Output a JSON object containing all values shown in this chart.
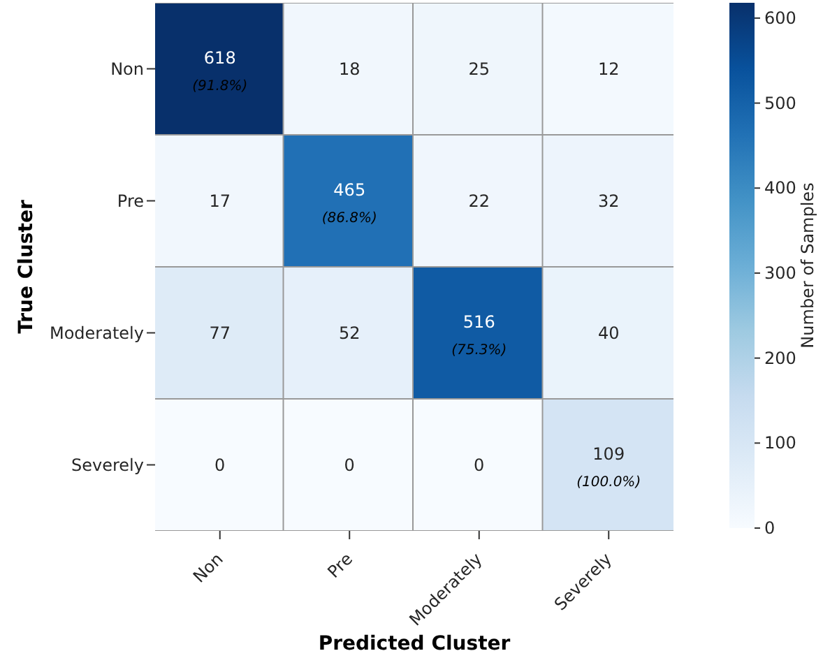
{
  "chart_data": {
    "type": "heatmap",
    "xlabel": "Predicted Cluster",
    "ylabel": "True Cluster",
    "clabel": "Number of Samples",
    "categories": [
      "Non",
      "Pre",
      "Moderately",
      "Severely"
    ],
    "y_categories": [
      "Non",
      "Pre",
      "Moderately",
      "Severely"
    ],
    "cells": [
      [
        618,
        18,
        25,
        12
      ],
      [
        17,
        465,
        22,
        32
      ],
      [
        77,
        52,
        516,
        40
      ],
      [
        0,
        0,
        0,
        109
      ]
    ],
    "cell_labels": [
      [
        "618\n(91.8%)",
        "18",
        "25",
        "12"
      ],
      [
        "17",
        "465\n(86.8%)",
        "22",
        "32"
      ],
      [
        "77",
        "52",
        "516\n(75.3%)",
        "40"
      ],
      [
        "0",
        "0",
        "0",
        "109\n(100.0%)"
      ]
    ],
    "clim": [
      0,
      618
    ],
    "cticks": [
      0,
      100,
      200,
      300,
      400,
      500,
      600
    ]
  }
}
